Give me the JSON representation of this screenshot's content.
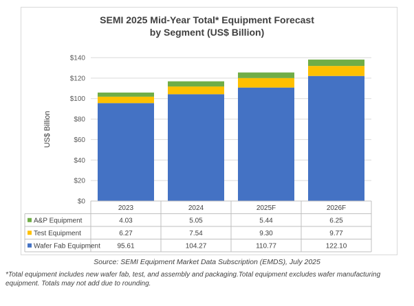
{
  "chart_data": {
    "type": "bar",
    "stacked": true,
    "title_line1": "SEMI 2025 Mid-Year Total* Equipment Forecast",
    "title_line2": "by Segment (US$ Billion)",
    "ylabel": "US$ Billion",
    "ylim": [
      0,
      140
    ],
    "yticks": [
      0,
      20,
      40,
      60,
      80,
      100,
      120,
      140
    ],
    "ytick_labels": [
      "$0",
      "$20",
      "$40",
      "$60",
      "$80",
      "$100",
      "$120",
      "$140"
    ],
    "grid": true,
    "categories": [
      "2023",
      "2024",
      "2025F",
      "2026F"
    ],
    "series": [
      {
        "name": "Wafer Fab Equipment",
        "color": "#4472c4",
        "values": [
          95.61,
          104.27,
          110.77,
          122.1
        ],
        "labels": [
          "95.61",
          "104.27",
          "110.77",
          "122.10"
        ]
      },
      {
        "name": "Test Equipment",
        "color": "#ffc000",
        "values": [
          6.27,
          7.54,
          9.3,
          9.77
        ],
        "labels": [
          "6.27",
          "7.54",
          "9.30",
          "9.77"
        ]
      },
      {
        "name": "A&P Equipment",
        "color": "#70ad47",
        "values": [
          4.03,
          5.05,
          5.44,
          6.25
        ],
        "labels": [
          "4.03",
          "5.05",
          "5.44",
          "6.25"
        ]
      }
    ],
    "table_row_order": [
      "A&P Equipment",
      "Test Equipment",
      "Wafer Fab Equipment"
    ]
  },
  "source": "Source: SEMI Equipment Market Data Subscription (EMDS), July 2025",
  "footnote": "*Total equipment includes new wafer fab, test, and assembly and packaging.Total equipment excludes wafer manufacturing equipment. Totals may not add due to rounding."
}
